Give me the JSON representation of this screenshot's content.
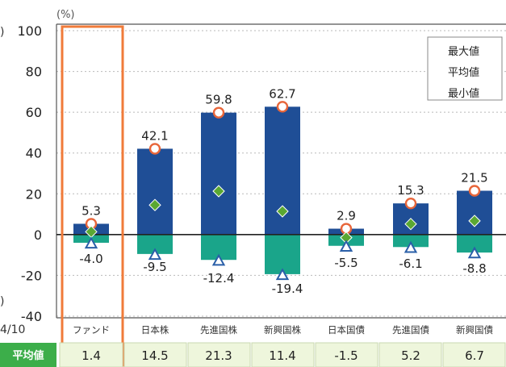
{
  "chart_data": {
    "type": "bar",
    "unit_label": "(%)",
    "left_clipped_labels": [
      ")",
      ")",
      "4/10"
    ],
    "ylim": [
      -40,
      100
    ],
    "y_ticks": [
      "100",
      "80",
      "60",
      "40",
      "20",
      "0",
      "-20",
      "-40"
    ],
    "categories": [
      "ファンド",
      "日本株",
      "先進国株",
      "新興国株",
      "日本国債",
      "先進国債",
      "新興国債"
    ],
    "series": [
      {
        "name": "最大値",
        "values": [
          5.3,
          42.1,
          59.8,
          62.7,
          2.9,
          15.3,
          21.5
        ],
        "labels": [
          "5.3",
          "42.1",
          "59.8",
          "62.7",
          "2.9",
          "15.3",
          "21.5"
        ]
      },
      {
        "name": "平均値",
        "values": [
          1.4,
          14.5,
          21.3,
          11.4,
          -1.5,
          5.2,
          6.7
        ],
        "labels": [
          "1.4",
          "14.5",
          "21.3",
          "11.4",
          "-1.5",
          "5.2",
          "6.7"
        ]
      },
      {
        "name": "最小値",
        "values": [
          -4.0,
          -9.5,
          -12.4,
          -19.4,
          -5.5,
          -6.1,
          -8.8
        ],
        "labels": [
          "-4.0",
          "-9.5",
          "-12.4",
          "-19.4",
          "-5.5",
          "-6.1",
          "-8.8"
        ]
      }
    ],
    "table_header": "平均値",
    "highlight_category": "ファンド",
    "grid": true,
    "legend_position": "top-right",
    "colors": {
      "bar_positive": "#1f4e96",
      "bar_negative": "#1aa58a",
      "max_marker": "#e8663a",
      "avg_marker": "#5aa832",
      "min_marker": "#2a5fa8",
      "highlight": "#f07b3a",
      "table_header_bg": "#3cae4a",
      "table_cell_bg": "#eef6dc"
    }
  }
}
